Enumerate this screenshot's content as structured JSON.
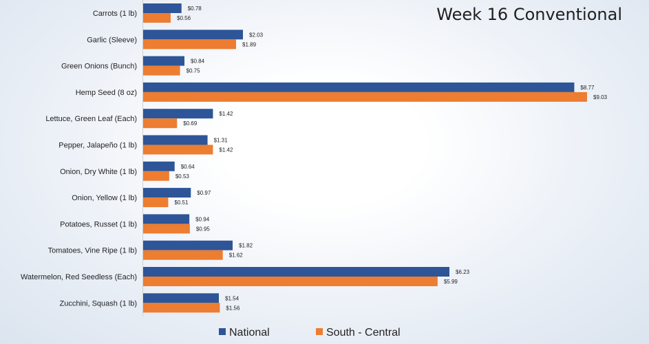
{
  "chart_data": {
    "type": "bar",
    "orientation": "horizontal",
    "title": "Week 16 Conventional",
    "categories": [
      "Carrots (1 lb)",
      "Garlic (Sleeve)",
      "Green Onions (Bunch)",
      "Hemp Seed (8 oz)",
      "Lettuce, Green Leaf (Each)",
      "Pepper, Jalapeño (1 lb)",
      "Onion, Dry White (1 lb)",
      "Onion, Yellow (1 lb)",
      "Potatoes, Russet (1 lb)",
      "Tomatoes, Vine Ripe (1 lb)",
      "Watermelon, Red Seedless (Each)",
      "Zucchini, Squash (1 lb)"
    ],
    "series": [
      {
        "name": "National",
        "color": "#2e5597",
        "values": [
          0.78,
          2.03,
          0.84,
          8.77,
          1.42,
          1.31,
          0.64,
          0.97,
          0.94,
          1.82,
          6.23,
          1.54
        ],
        "labels": [
          "$0.78",
          "$2.03",
          "$0.84",
          "$8.77",
          "$1.42",
          "$1.31",
          "$0.64",
          "$0.97",
          "$0.94",
          "$1.82",
          "$6.23",
          "$1.54"
        ]
      },
      {
        "name": "South - Central",
        "color": "#ed7d31",
        "values": [
          0.56,
          1.89,
          0.75,
          9.03,
          0.69,
          1.42,
          0.53,
          0.51,
          0.95,
          1.62,
          5.99,
          1.56
        ],
        "labels": [
          "$0.56",
          "$1.89",
          "$0.75",
          "$9.03",
          "$0.69",
          "$1.42",
          "$0.53",
          "$0.51",
          "$0.95",
          "$1.62",
          "$5.99",
          "$1.56"
        ]
      }
    ],
    "xlim": [
      0,
      9.03
    ],
    "xlabel": "",
    "ylabel": "",
    "grid": false,
    "legend_position": "bottom"
  }
}
